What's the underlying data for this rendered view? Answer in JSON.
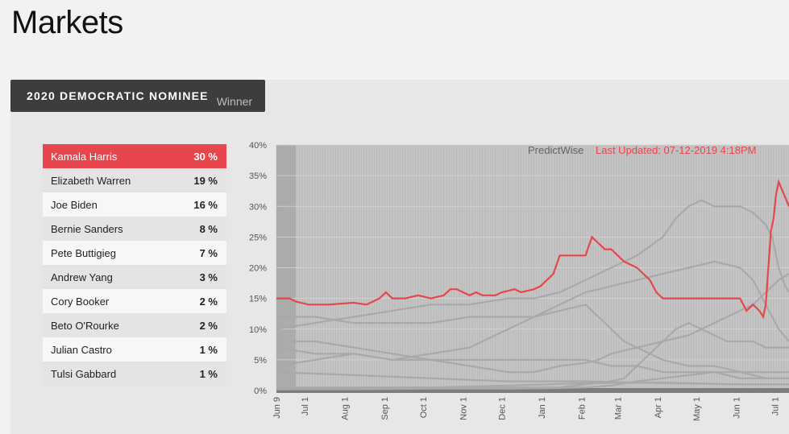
{
  "page": {
    "title": "Markets"
  },
  "market": {
    "title": "2020 DEMOCRATIC NOMINEE",
    "subtitle": "Winner"
  },
  "candidates": [
    {
      "name": "Kamala Harris",
      "pct": "30 %"
    },
    {
      "name": "Elizabeth Warren",
      "pct": "19 %"
    },
    {
      "name": "Joe Biden",
      "pct": "16 %"
    },
    {
      "name": "Bernie Sanders",
      "pct": "8 %"
    },
    {
      "name": "Pete Buttigieg",
      "pct": "7 %"
    },
    {
      "name": "Andrew Yang",
      "pct": "3 %"
    },
    {
      "name": "Cory Booker",
      "pct": "2 %"
    },
    {
      "name": "Beto O'Rourke",
      "pct": "2 %"
    },
    {
      "name": "Julian Castro",
      "pct": "1 %"
    },
    {
      "name": "Tulsi Gabbard",
      "pct": "1 %"
    }
  ],
  "colors": {
    "highlight": "#e8464d",
    "series_other": "#a9a9a9",
    "tab_bg": "#3d3d3d"
  },
  "chart_data": {
    "type": "line",
    "brand": "PredictWise",
    "updated": "Last Updated: 07-12-2019 4:18PM",
    "y_ticks": [
      "0%",
      "5%",
      "10%",
      "15%",
      "20%",
      "25%",
      "30%",
      "35%",
      "40%"
    ],
    "ylim": [
      0,
      40
    ],
    "x_ticks": [
      "Jun 9",
      "Jul 1",
      "Aug 1",
      "Sep 1",
      "Oct 1",
      "Nov 1",
      "Dec 1",
      "Jan 1",
      "Feb 1",
      "Mar 1",
      "Apr 1",
      "May 1",
      "Jun 1",
      "Jul 1"
    ],
    "x_tick_days": [
      0,
      22,
      53,
      84,
      114,
      145,
      175,
      206,
      237,
      265,
      296,
      326,
      357,
      387
    ],
    "x_range": [
      0,
      398
    ],
    "series": [
      {
        "name": "Kamala Harris",
        "highlight": true,
        "points": [
          [
            0,
            15
          ],
          [
            10,
            15
          ],
          [
            15,
            14.5
          ],
          [
            25,
            14
          ],
          [
            40,
            14
          ],
          [
            60,
            14.3
          ],
          [
            70,
            14
          ],
          [
            80,
            15
          ],
          [
            85,
            16
          ],
          [
            90,
            15
          ],
          [
            95,
            15
          ],
          [
            100,
            15
          ],
          [
            110,
            15.5
          ],
          [
            120,
            15
          ],
          [
            130,
            15.5
          ],
          [
            135,
            16.5
          ],
          [
            140,
            16.5
          ],
          [
            145,
            16
          ],
          [
            150,
            15.5
          ],
          [
            155,
            16
          ],
          [
            160,
            15.5
          ],
          [
            170,
            15.5
          ],
          [
            175,
            16
          ],
          [
            185,
            16.5
          ],
          [
            190,
            16
          ],
          [
            200,
            16.5
          ],
          [
            205,
            17
          ],
          [
            210,
            18
          ],
          [
            215,
            19
          ],
          [
            220,
            22
          ],
          [
            230,
            22
          ],
          [
            240,
            22
          ],
          [
            245,
            25
          ],
          [
            250,
            24
          ],
          [
            255,
            23
          ],
          [
            260,
            23
          ],
          [
            265,
            22
          ],
          [
            270,
            21
          ],
          [
            280,
            20
          ],
          [
            290,
            18
          ],
          [
            295,
            16
          ],
          [
            300,
            15
          ],
          [
            310,
            15
          ],
          [
            320,
            15
          ],
          [
            330,
            15
          ],
          [
            340,
            15
          ],
          [
            350,
            15
          ],
          [
            360,
            15
          ],
          [
            365,
            13
          ],
          [
            370,
            14
          ],
          [
            375,
            13
          ],
          [
            378,
            12
          ],
          [
            380,
            14
          ],
          [
            382,
            20
          ],
          [
            384,
            26
          ],
          [
            386,
            28
          ],
          [
            388,
            32
          ],
          [
            390,
            34
          ],
          [
            392,
            33
          ],
          [
            394,
            32
          ],
          [
            396,
            31
          ],
          [
            398,
            30
          ]
        ]
      },
      {
        "name": "Elizabeth Warren",
        "points": [
          [
            0,
            8
          ],
          [
            30,
            8
          ],
          [
            60,
            7
          ],
          [
            90,
            6
          ],
          [
            120,
            5
          ],
          [
            150,
            4
          ],
          [
            180,
            3
          ],
          [
            200,
            3
          ],
          [
            220,
            4
          ],
          [
            240,
            4.5
          ],
          [
            250,
            5
          ],
          [
            260,
            6
          ],
          [
            280,
            7
          ],
          [
            300,
            8
          ],
          [
            320,
            9
          ],
          [
            340,
            11
          ],
          [
            350,
            12
          ],
          [
            360,
            13
          ],
          [
            370,
            14
          ],
          [
            380,
            16
          ],
          [
            390,
            18
          ],
          [
            398,
            19
          ]
        ]
      },
      {
        "name": "Joe Biden",
        "points": [
          [
            0,
            10
          ],
          [
            30,
            11
          ],
          [
            60,
            12
          ],
          [
            90,
            13
          ],
          [
            120,
            14
          ],
          [
            150,
            14
          ],
          [
            180,
            15
          ],
          [
            200,
            15
          ],
          [
            220,
            16
          ],
          [
            240,
            18
          ],
          [
            260,
            20
          ],
          [
            280,
            22
          ],
          [
            300,
            25
          ],
          [
            310,
            28
          ],
          [
            320,
            30
          ],
          [
            330,
            31
          ],
          [
            340,
            30
          ],
          [
            350,
            30
          ],
          [
            360,
            30
          ],
          [
            370,
            29
          ],
          [
            380,
            27
          ],
          [
            385,
            25
          ],
          [
            390,
            20
          ],
          [
            395,
            17
          ],
          [
            398,
            16
          ]
        ]
      },
      {
        "name": "Bernie Sanders",
        "points": [
          [
            0,
            12
          ],
          [
            30,
            12
          ],
          [
            60,
            11
          ],
          [
            90,
            11
          ],
          [
            120,
            11
          ],
          [
            150,
            12
          ],
          [
            180,
            12
          ],
          [
            200,
            12
          ],
          [
            220,
            14
          ],
          [
            240,
            16
          ],
          [
            260,
            17
          ],
          [
            280,
            18
          ],
          [
            300,
            19
          ],
          [
            320,
            20
          ],
          [
            340,
            21
          ],
          [
            360,
            20
          ],
          [
            370,
            18
          ],
          [
            380,
            14
          ],
          [
            390,
            10
          ],
          [
            398,
            8
          ]
        ]
      },
      {
        "name": "Pete Buttigieg",
        "points": [
          [
            0,
            0.5
          ],
          [
            60,
            0.5
          ],
          [
            120,
            0.5
          ],
          [
            180,
            0.5
          ],
          [
            220,
            0.5
          ],
          [
            240,
            1
          ],
          [
            260,
            1.5
          ],
          [
            270,
            2
          ],
          [
            280,
            4
          ],
          [
            290,
            6
          ],
          [
            300,
            8
          ],
          [
            310,
            10
          ],
          [
            320,
            11
          ],
          [
            330,
            10
          ],
          [
            340,
            9
          ],
          [
            350,
            8
          ],
          [
            360,
            8
          ],
          [
            370,
            8
          ],
          [
            380,
            7
          ],
          [
            390,
            7
          ],
          [
            398,
            7
          ]
        ]
      },
      {
        "name": "Beto O'Rourke",
        "points": [
          [
            0,
            4
          ],
          [
            30,
            5
          ],
          [
            60,
            6
          ],
          [
            90,
            5
          ],
          [
            120,
            6
          ],
          [
            150,
            7
          ],
          [
            180,
            10
          ],
          [
            200,
            12
          ],
          [
            220,
            13
          ],
          [
            240,
            14
          ],
          [
            250,
            12
          ],
          [
            260,
            10
          ],
          [
            270,
            8
          ],
          [
            280,
            7
          ],
          [
            290,
            6
          ],
          [
            300,
            5
          ],
          [
            320,
            4
          ],
          [
            340,
            4
          ],
          [
            360,
            3
          ],
          [
            380,
            2
          ],
          [
            398,
            2
          ]
        ]
      },
      {
        "name": "Cory Booker",
        "points": [
          [
            0,
            7
          ],
          [
            30,
            6
          ],
          [
            60,
            6
          ],
          [
            90,
            5
          ],
          [
            120,
            5
          ],
          [
            150,
            5
          ],
          [
            180,
            5
          ],
          [
            200,
            5
          ],
          [
            220,
            5
          ],
          [
            240,
            5
          ],
          [
            260,
            4
          ],
          [
            280,
            4
          ],
          [
            300,
            3
          ],
          [
            320,
            3
          ],
          [
            340,
            3
          ],
          [
            360,
            2
          ],
          [
            380,
            2
          ],
          [
            398,
            2
          ]
        ]
      },
      {
        "name": "Andrew Yang",
        "points": [
          [
            0,
            0.2
          ],
          [
            60,
            0.2
          ],
          [
            120,
            0.3
          ],
          [
            180,
            0.3
          ],
          [
            220,
            0.4
          ],
          [
            240,
            0.5
          ],
          [
            260,
            0.8
          ],
          [
            280,
            1.5
          ],
          [
            300,
            2
          ],
          [
            320,
            2.5
          ],
          [
            340,
            3
          ],
          [
            360,
            3
          ],
          [
            380,
            3
          ],
          [
            398,
            3
          ]
        ]
      },
      {
        "name": "Julian Castro",
        "points": [
          [
            0,
            3
          ],
          [
            60,
            2.5
          ],
          [
            120,
            2
          ],
          [
            180,
            1.5
          ],
          [
            240,
            1.5
          ],
          [
            300,
            1.2
          ],
          [
            360,
            1
          ],
          [
            398,
            1
          ]
        ]
      },
      {
        "name": "Tulsi Gabbard",
        "points": [
          [
            0,
            0.3
          ],
          [
            60,
            0.4
          ],
          [
            120,
            0.5
          ],
          [
            180,
            0.8
          ],
          [
            240,
            1.2
          ],
          [
            300,
            1.3
          ],
          [
            360,
            1
          ],
          [
            398,
            1
          ]
        ]
      }
    ]
  }
}
